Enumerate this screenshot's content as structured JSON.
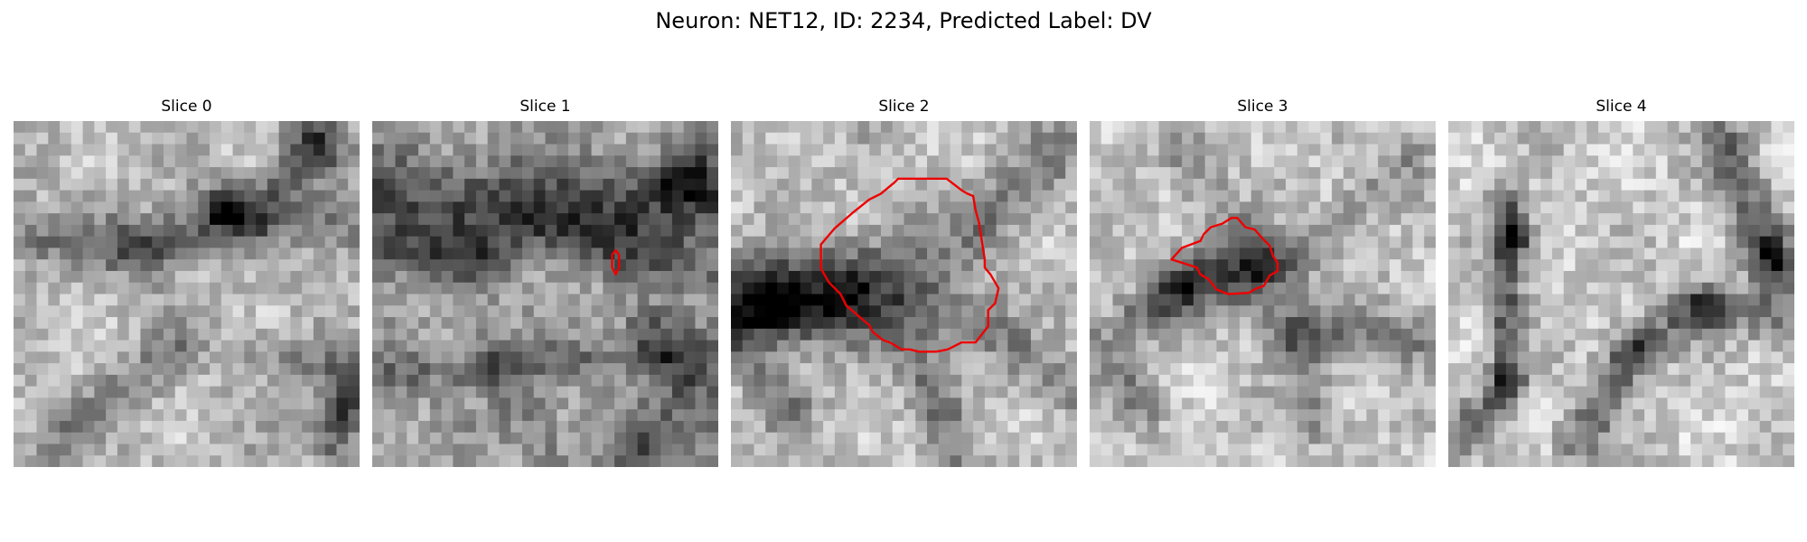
{
  "figure": {
    "title": "Neuron: NET12, ID: 2234, Predicted Label: DV"
  },
  "panels": [
    {
      "title": "Slice 0"
    },
    {
      "title": "Slice 1"
    },
    {
      "title": "Slice 2"
    },
    {
      "title": "Slice 3"
    },
    {
      "title": "Slice 4"
    }
  ],
  "colors": {
    "contour": "#ee0000",
    "background": "#ffffff"
  }
}
